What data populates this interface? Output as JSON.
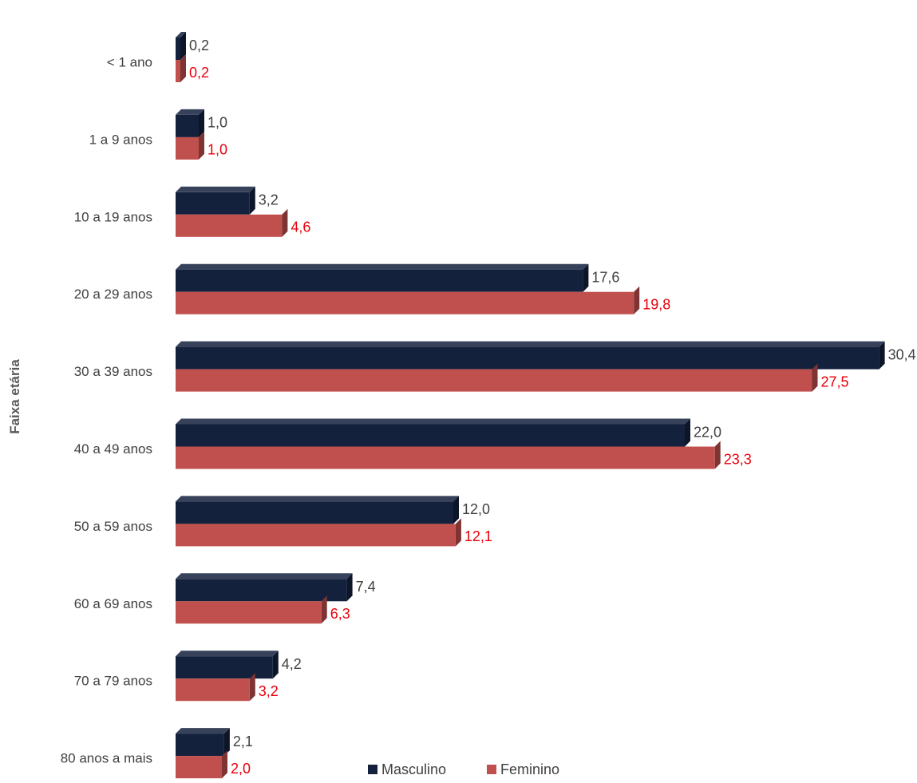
{
  "chart_data": {
    "type": "bar",
    "orientation": "horizontal",
    "ylabel": "Faixa etária",
    "categories": [
      "< 1 ano",
      "1 a 9 anos",
      "10 a 19 anos",
      "20 a 29 anos",
      "30 a 39 anos",
      "40 a 49 anos",
      "50 a 59 anos",
      "60 a 69 anos",
      "70 a 79 anos",
      "80 anos a mais"
    ],
    "series": [
      {
        "name": "Masculino",
        "color": "#14213D",
        "label_color": "#404040",
        "values": [
          0.2,
          1.0,
          3.2,
          17.6,
          30.4,
          22.0,
          12.0,
          7.4,
          4.2,
          2.1
        ],
        "labels": [
          "0,2",
          "1,0",
          "3,2",
          "17,6",
          "30,4",
          "22,0",
          "12,0",
          "7,4",
          "4,2",
          "2,1"
        ]
      },
      {
        "name": "Feminino",
        "color": "#C0504D",
        "label_color": "#E8000B",
        "values": [
          0.2,
          1.0,
          4.6,
          19.8,
          27.5,
          23.3,
          12.1,
          6.3,
          3.2,
          2.0
        ],
        "labels": [
          "0,2",
          "1,0",
          "4,6",
          "19,8",
          "27,5",
          "23,3",
          "12,1",
          "6,3",
          "3,2",
          "2,0"
        ]
      }
    ],
    "xlim": [
      0,
      30.4
    ],
    "grid": false,
    "legend": "bottom"
  }
}
